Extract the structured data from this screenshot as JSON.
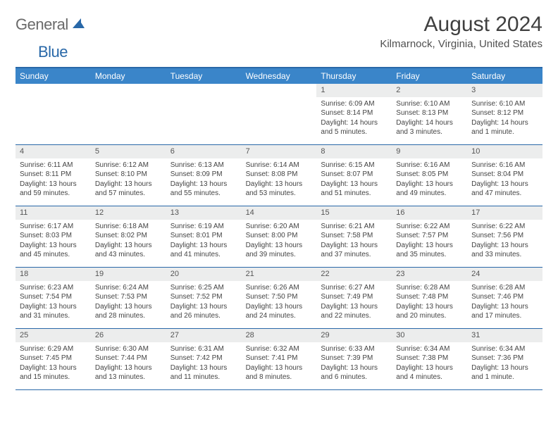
{
  "logo": {
    "part1": "General",
    "part2": "Blue"
  },
  "title": "August 2024",
  "location": "Kilmarnock, Virginia, United States",
  "colors": {
    "accent": "#3a85c9",
    "border": "#2968a8",
    "daybg": "#eceded",
    "text": "#444444"
  },
  "weekdays": [
    "Sunday",
    "Monday",
    "Tuesday",
    "Wednesday",
    "Thursday",
    "Friday",
    "Saturday"
  ],
  "weeks": [
    [
      {
        "day": "",
        "sunrise": "",
        "sunset": "",
        "daylight": ""
      },
      {
        "day": "",
        "sunrise": "",
        "sunset": "",
        "daylight": ""
      },
      {
        "day": "",
        "sunrise": "",
        "sunset": "",
        "daylight": ""
      },
      {
        "day": "",
        "sunrise": "",
        "sunset": "",
        "daylight": ""
      },
      {
        "day": "1",
        "sunrise": "Sunrise: 6:09 AM",
        "sunset": "Sunset: 8:14 PM",
        "daylight": "Daylight: 14 hours and 5 minutes."
      },
      {
        "day": "2",
        "sunrise": "Sunrise: 6:10 AM",
        "sunset": "Sunset: 8:13 PM",
        "daylight": "Daylight: 14 hours and 3 minutes."
      },
      {
        "day": "3",
        "sunrise": "Sunrise: 6:10 AM",
        "sunset": "Sunset: 8:12 PM",
        "daylight": "Daylight: 14 hours and 1 minute."
      }
    ],
    [
      {
        "day": "4",
        "sunrise": "Sunrise: 6:11 AM",
        "sunset": "Sunset: 8:11 PM",
        "daylight": "Daylight: 13 hours and 59 minutes."
      },
      {
        "day": "5",
        "sunrise": "Sunrise: 6:12 AM",
        "sunset": "Sunset: 8:10 PM",
        "daylight": "Daylight: 13 hours and 57 minutes."
      },
      {
        "day": "6",
        "sunrise": "Sunrise: 6:13 AM",
        "sunset": "Sunset: 8:09 PM",
        "daylight": "Daylight: 13 hours and 55 minutes."
      },
      {
        "day": "7",
        "sunrise": "Sunrise: 6:14 AM",
        "sunset": "Sunset: 8:08 PM",
        "daylight": "Daylight: 13 hours and 53 minutes."
      },
      {
        "day": "8",
        "sunrise": "Sunrise: 6:15 AM",
        "sunset": "Sunset: 8:07 PM",
        "daylight": "Daylight: 13 hours and 51 minutes."
      },
      {
        "day": "9",
        "sunrise": "Sunrise: 6:16 AM",
        "sunset": "Sunset: 8:05 PM",
        "daylight": "Daylight: 13 hours and 49 minutes."
      },
      {
        "day": "10",
        "sunrise": "Sunrise: 6:16 AM",
        "sunset": "Sunset: 8:04 PM",
        "daylight": "Daylight: 13 hours and 47 minutes."
      }
    ],
    [
      {
        "day": "11",
        "sunrise": "Sunrise: 6:17 AM",
        "sunset": "Sunset: 8:03 PM",
        "daylight": "Daylight: 13 hours and 45 minutes."
      },
      {
        "day": "12",
        "sunrise": "Sunrise: 6:18 AM",
        "sunset": "Sunset: 8:02 PM",
        "daylight": "Daylight: 13 hours and 43 minutes."
      },
      {
        "day": "13",
        "sunrise": "Sunrise: 6:19 AM",
        "sunset": "Sunset: 8:01 PM",
        "daylight": "Daylight: 13 hours and 41 minutes."
      },
      {
        "day": "14",
        "sunrise": "Sunrise: 6:20 AM",
        "sunset": "Sunset: 8:00 PM",
        "daylight": "Daylight: 13 hours and 39 minutes."
      },
      {
        "day": "15",
        "sunrise": "Sunrise: 6:21 AM",
        "sunset": "Sunset: 7:58 PM",
        "daylight": "Daylight: 13 hours and 37 minutes."
      },
      {
        "day": "16",
        "sunrise": "Sunrise: 6:22 AM",
        "sunset": "Sunset: 7:57 PM",
        "daylight": "Daylight: 13 hours and 35 minutes."
      },
      {
        "day": "17",
        "sunrise": "Sunrise: 6:22 AM",
        "sunset": "Sunset: 7:56 PM",
        "daylight": "Daylight: 13 hours and 33 minutes."
      }
    ],
    [
      {
        "day": "18",
        "sunrise": "Sunrise: 6:23 AM",
        "sunset": "Sunset: 7:54 PM",
        "daylight": "Daylight: 13 hours and 31 minutes."
      },
      {
        "day": "19",
        "sunrise": "Sunrise: 6:24 AM",
        "sunset": "Sunset: 7:53 PM",
        "daylight": "Daylight: 13 hours and 28 minutes."
      },
      {
        "day": "20",
        "sunrise": "Sunrise: 6:25 AM",
        "sunset": "Sunset: 7:52 PM",
        "daylight": "Daylight: 13 hours and 26 minutes."
      },
      {
        "day": "21",
        "sunrise": "Sunrise: 6:26 AM",
        "sunset": "Sunset: 7:50 PM",
        "daylight": "Daylight: 13 hours and 24 minutes."
      },
      {
        "day": "22",
        "sunrise": "Sunrise: 6:27 AM",
        "sunset": "Sunset: 7:49 PM",
        "daylight": "Daylight: 13 hours and 22 minutes."
      },
      {
        "day": "23",
        "sunrise": "Sunrise: 6:28 AM",
        "sunset": "Sunset: 7:48 PM",
        "daylight": "Daylight: 13 hours and 20 minutes."
      },
      {
        "day": "24",
        "sunrise": "Sunrise: 6:28 AM",
        "sunset": "Sunset: 7:46 PM",
        "daylight": "Daylight: 13 hours and 17 minutes."
      }
    ],
    [
      {
        "day": "25",
        "sunrise": "Sunrise: 6:29 AM",
        "sunset": "Sunset: 7:45 PM",
        "daylight": "Daylight: 13 hours and 15 minutes."
      },
      {
        "day": "26",
        "sunrise": "Sunrise: 6:30 AM",
        "sunset": "Sunset: 7:44 PM",
        "daylight": "Daylight: 13 hours and 13 minutes."
      },
      {
        "day": "27",
        "sunrise": "Sunrise: 6:31 AM",
        "sunset": "Sunset: 7:42 PM",
        "daylight": "Daylight: 13 hours and 11 minutes."
      },
      {
        "day": "28",
        "sunrise": "Sunrise: 6:32 AM",
        "sunset": "Sunset: 7:41 PM",
        "daylight": "Daylight: 13 hours and 8 minutes."
      },
      {
        "day": "29",
        "sunrise": "Sunrise: 6:33 AM",
        "sunset": "Sunset: 7:39 PM",
        "daylight": "Daylight: 13 hours and 6 minutes."
      },
      {
        "day": "30",
        "sunrise": "Sunrise: 6:34 AM",
        "sunset": "Sunset: 7:38 PM",
        "daylight": "Daylight: 13 hours and 4 minutes."
      },
      {
        "day": "31",
        "sunrise": "Sunrise: 6:34 AM",
        "sunset": "Sunset: 7:36 PM",
        "daylight": "Daylight: 13 hours and 1 minute."
      }
    ]
  ]
}
